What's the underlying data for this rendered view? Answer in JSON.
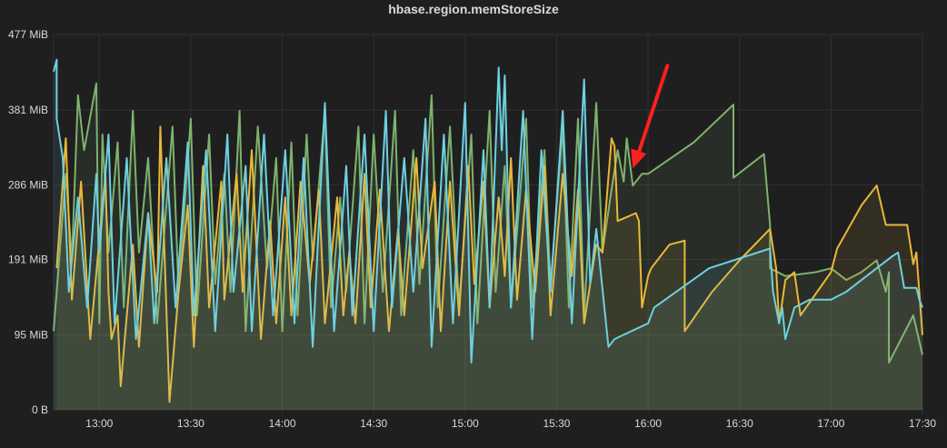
{
  "chart_data": {
    "type": "line",
    "title": "hbase.region.memStoreSize",
    "xlabel": "",
    "ylabel": "",
    "x_ticks": [
      "13:00",
      "13:30",
      "14:00",
      "14:30",
      "15:00",
      "15:30",
      "16:00",
      "16:30",
      "17:00",
      "17:30"
    ],
    "x_range": [
      "12:45",
      "17:30"
    ],
    "y_ticks": [
      "0 B",
      "95 MiB",
      "191 MiB",
      "286 MiB",
      "381 MiB",
      "477 MiB"
    ],
    "y_tick_values": [
      0,
      95,
      191,
      286,
      381,
      477
    ],
    "ylim": [
      0,
      477
    ],
    "y_unit": "MiB",
    "grid": true,
    "legend": "none",
    "fill": true,
    "colors": {
      "background": "#1f1f20",
      "grid": "#303133",
      "text": "#d8d9da",
      "arrow": "#ff1f1f"
    },
    "annotation": {
      "type": "arrow",
      "color": "#ff1f1f",
      "points_to": [
        "15:55",
        307
      ]
    },
    "series": [
      {
        "color": "#7eb26d",
        "points": [
          [
            "12:45",
            100
          ],
          [
            "12:49",
            300
          ],
          [
            "12:51",
            190
          ],
          [
            "12:53",
            400
          ],
          [
            "12:55",
            330
          ],
          [
            "12:59",
            415
          ],
          [
            "13:00",
            110
          ],
          [
            "13:01",
            350
          ],
          [
            "13:03",
            200
          ],
          [
            "13:06",
            340
          ],
          [
            "13:08",
            130
          ],
          [
            "13:11",
            380
          ],
          [
            "13:13",
            200
          ],
          [
            "13:16",
            320
          ],
          [
            "13:19",
            110
          ],
          [
            "13:24",
            360
          ],
          [
            "13:26",
            150
          ],
          [
            "13:30",
            370
          ],
          [
            "13:32",
            120
          ],
          [
            "13:36",
            350
          ],
          [
            "13:38",
            160
          ],
          [
            "13:41",
            300
          ],
          [
            "13:43",
            150
          ],
          [
            "13:46",
            380
          ],
          [
            "13:48",
            100
          ],
          [
            "13:52",
            360
          ],
          [
            "13:55",
            180
          ],
          [
            "13:58",
            320
          ],
          [
            "14:00",
            100
          ],
          [
            "14:03",
            340
          ],
          [
            "14:05",
            120
          ],
          [
            "14:08",
            350
          ],
          [
            "14:10",
            190
          ],
          [
            "14:14",
            380
          ],
          [
            "14:16",
            130
          ],
          [
            "14:19",
            270
          ],
          [
            "14:21",
            150
          ],
          [
            "14:25",
            360
          ],
          [
            "14:27",
            110
          ],
          [
            "14:30",
            350
          ],
          [
            "14:33",
            150
          ],
          [
            "14:37",
            380
          ],
          [
            "14:39",
            120
          ],
          [
            "14:43",
            330
          ],
          [
            "14:45",
            160
          ],
          [
            "14:49",
            400
          ],
          [
            "14:51",
            130
          ],
          [
            "14:55",
            360
          ],
          [
            "14:58",
            130
          ],
          [
            "15:02",
            350
          ],
          [
            "15:04",
            110
          ],
          [
            "15:08",
            380
          ],
          [
            "15:10",
            150
          ],
          [
            "15:13",
            310
          ],
          [
            "15:15",
            130
          ],
          [
            "15:20",
            370
          ],
          [
            "15:22",
            130
          ],
          [
            "15:26",
            330
          ],
          [
            "15:28",
            160
          ],
          [
            "15:32",
            360
          ],
          [
            "15:34",
            130
          ],
          [
            "15:37",
            370
          ],
          [
            "15:39",
            120
          ],
          [
            "15:43",
            390
          ],
          [
            "15:45",
            200
          ],
          [
            "15:48",
            280
          ],
          [
            "15:50",
            330
          ],
          [
            "15:52",
            290
          ],
          [
            "15:53",
            345
          ],
          [
            "15:55",
            285
          ],
          [
            "15:58",
            300
          ],
          [
            "16:00",
            300
          ],
          [
            "16:15",
            340
          ],
          [
            "16:28",
            388
          ],
          [
            "16:28",
            295
          ],
          [
            "16:38",
            325
          ],
          [
            "16:40",
            235
          ],
          [
            "16:40",
            180
          ],
          [
            "16:45",
            170
          ],
          [
            "16:55",
            175
          ],
          [
            "17:00",
            180
          ],
          [
            "17:05",
            165
          ],
          [
            "17:10",
            175
          ],
          [
            "17:15",
            190
          ],
          [
            "17:18",
            150
          ],
          [
            "17:19",
            175
          ],
          [
            "17:19",
            60
          ],
          [
            "17:27",
            120
          ],
          [
            "17:30",
            70
          ]
        ]
      },
      {
        "color": "#eab839",
        "points": [
          [
            "12:46",
            180
          ],
          [
            "12:49",
            345
          ],
          [
            "12:51",
            140
          ],
          [
            "12:54",
            290
          ],
          [
            "12:57",
            90
          ],
          [
            "13:02",
            300
          ],
          [
            "13:03",
            150
          ],
          [
            "13:04",
            90
          ],
          [
            "13:06",
            120
          ],
          [
            "13:07",
            30
          ],
          [
            "13:11",
            210
          ],
          [
            "13:13",
            80
          ],
          [
            "13:16",
            250
          ],
          [
            "13:19",
            150
          ],
          [
            "13:20",
            360
          ],
          [
            "13:23",
            10
          ],
          [
            "13:26",
            150
          ],
          [
            "13:29",
            260
          ],
          [
            "13:31",
            80
          ],
          [
            "13:34",
            310
          ],
          [
            "13:36",
            130
          ],
          [
            "13:40",
            290
          ],
          [
            "13:41",
            140
          ],
          [
            "13:45",
            300
          ],
          [
            "13:47",
            150
          ],
          [
            "13:50",
            330
          ],
          [
            "13:53",
            90
          ],
          [
            "13:56",
            240
          ],
          [
            "13:58",
            110
          ],
          [
            "14:01",
            270
          ],
          [
            "14:03",
            120
          ],
          [
            "14:06",
            290
          ],
          [
            "14:09",
            160
          ],
          [
            "14:12",
            280
          ],
          [
            "14:14",
            110
          ],
          [
            "14:18",
            270
          ],
          [
            "14:20",
            120
          ],
          [
            "14:22",
            200
          ],
          [
            "14:24",
            110
          ],
          [
            "14:27",
            300
          ],
          [
            "14:29",
            130
          ],
          [
            "14:32",
            280
          ],
          [
            "14:35",
            100
          ],
          [
            "14:38",
            230
          ],
          [
            "14:40",
            120
          ],
          [
            "14:44",
            320
          ],
          [
            "14:46",
            180
          ],
          [
            "14:50",
            290
          ],
          [
            "14:52",
            100
          ],
          [
            "14:55",
            290
          ],
          [
            "14:58",
            120
          ],
          [
            "15:01",
            310
          ],
          [
            "15:03",
            160
          ],
          [
            "15:06",
            290
          ],
          [
            "15:08",
            130
          ],
          [
            "15:11",
            270
          ],
          [
            "15:13",
            170
          ],
          [
            "15:15",
            320
          ],
          [
            "15:17",
            140
          ],
          [
            "15:20",
            280
          ],
          [
            "15:23",
            150
          ],
          [
            "15:26",
            310
          ],
          [
            "15:28",
            120
          ],
          [
            "15:32",
            300
          ],
          [
            "15:35",
            170
          ],
          [
            "15:37",
            280
          ],
          [
            "15:39",
            110
          ],
          [
            "15:43",
            210
          ],
          [
            "15:45",
            200
          ],
          [
            "15:48",
            345
          ],
          [
            "15:49",
            335
          ],
          [
            "15:50",
            240
          ],
          [
            "15:53",
            245
          ],
          [
            "15:56",
            250
          ],
          [
            "15:57",
            240
          ],
          [
            "15:58",
            130
          ],
          [
            "16:00",
            170
          ],
          [
            "16:01",
            180
          ],
          [
            "16:07",
            210
          ],
          [
            "16:12",
            215
          ],
          [
            "16:12",
            100
          ],
          [
            "16:21",
            150
          ],
          [
            "16:30",
            190
          ],
          [
            "16:40",
            230
          ],
          [
            "16:42",
            180
          ],
          [
            "16:43",
            110
          ],
          [
            "16:45",
            165
          ],
          [
            "16:48",
            175
          ],
          [
            "16:50",
            120
          ],
          [
            "17:00",
            175
          ],
          [
            "17:02",
            205
          ],
          [
            "17:10",
            260
          ],
          [
            "17:15",
            285
          ],
          [
            "17:18",
            235
          ],
          [
            "17:25",
            235
          ],
          [
            "17:27",
            185
          ],
          [
            "17:28",
            200
          ],
          [
            "17:30",
            95
          ]
        ]
      },
      {
        "color": "#6ed0e0",
        "points": [
          [
            "12:45",
            430
          ],
          [
            "12:46",
            445
          ],
          [
            "12:46",
            370
          ],
          [
            "12:48",
            320
          ],
          [
            "12:50",
            150
          ],
          [
            "12:53",
            270
          ],
          [
            "12:56",
            130
          ],
          [
            "12:59",
            300
          ],
          [
            "13:00",
            200
          ],
          [
            "13:03",
            350
          ],
          [
            "13:05",
            110
          ],
          [
            "13:09",
            320
          ],
          [
            "13:12",
            90
          ],
          [
            "13:16",
            250
          ],
          [
            "13:18",
            110
          ],
          [
            "13:22",
            320
          ],
          [
            "13:25",
            130
          ],
          [
            "13:29",
            340
          ],
          [
            "13:31",
            120
          ],
          [
            "13:35",
            330
          ],
          [
            "13:38",
            100
          ],
          [
            "13:42",
            350
          ],
          [
            "13:44",
            150
          ],
          [
            "13:48",
            310
          ],
          [
            "13:50",
            100
          ],
          [
            "13:54",
            350
          ],
          [
            "13:57",
            120
          ],
          [
            "14:01",
            330
          ],
          [
            "14:04",
            110
          ],
          [
            "14:07",
            320
          ],
          [
            "14:10",
            80
          ],
          [
            "14:14",
            390
          ],
          [
            "14:17",
            100
          ],
          [
            "14:21",
            310
          ],
          [
            "14:23",
            120
          ],
          [
            "14:27",
            350
          ],
          [
            "14:30",
            100
          ],
          [
            "14:34",
            380
          ],
          [
            "14:36",
            130
          ],
          [
            "14:40",
            320
          ],
          [
            "14:43",
            150
          ],
          [
            "14:47",
            370
          ],
          [
            "14:49",
            80
          ],
          [
            "14:53",
            350
          ],
          [
            "14:56",
            110
          ],
          [
            "15:00",
            390
          ],
          [
            "15:02",
            60
          ],
          [
            "15:06",
            330
          ],
          [
            "15:08",
            130
          ],
          [
            "15:11",
            435
          ],
          [
            "15:12",
            330
          ],
          [
            "15:13",
            425
          ],
          [
            "15:15",
            130
          ],
          [
            "15:19",
            380
          ],
          [
            "15:22",
            90
          ],
          [
            "15:25",
            330
          ],
          [
            "15:28",
            150
          ],
          [
            "15:32",
            380
          ],
          [
            "15:35",
            110
          ],
          [
            "15:39",
            420
          ],
          [
            "15:41",
            160
          ],
          [
            "15:43",
            230
          ],
          [
            "15:47",
            80
          ],
          [
            "15:49",
            90
          ],
          [
            "16:00",
            110
          ],
          [
            "16:02",
            130
          ],
          [
            "16:20",
            180
          ],
          [
            "16:40",
            205
          ],
          [
            "16:41",
            150
          ],
          [
            "16:43",
            110
          ],
          [
            "16:44",
            130
          ],
          [
            "16:45",
            90
          ],
          [
            "16:48",
            130
          ],
          [
            "16:53",
            140
          ],
          [
            "17:00",
            140
          ],
          [
            "17:05",
            150
          ],
          [
            "17:10",
            165
          ],
          [
            "17:20",
            195
          ],
          [
            "17:22",
            200
          ],
          [
            "17:24",
            155
          ],
          [
            "17:28",
            155
          ],
          [
            "17:29",
            140
          ],
          [
            "17:30",
            130
          ]
        ]
      }
    ]
  }
}
